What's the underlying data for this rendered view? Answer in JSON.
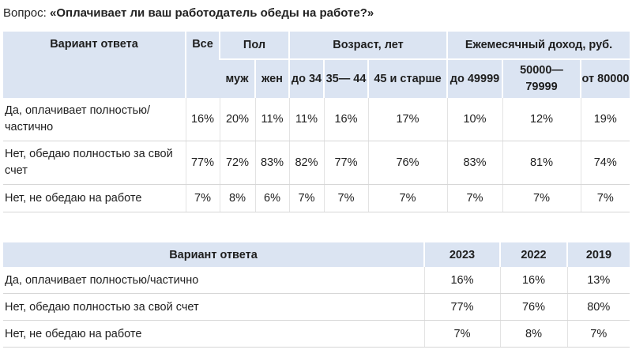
{
  "question": {
    "prefix": "Вопрос:",
    "text": "«Оплачивает ли ваш работодатель обеды на работе?»"
  },
  "table1": {
    "header": {
      "option": "Вариант ответа",
      "all": "Все",
      "gender": "Пол",
      "age": "Возраст, лет",
      "income": "Ежемесячный доход, руб.",
      "sub": [
        "муж",
        "жен",
        "до 34",
        "35— 44",
        "45 и старше",
        "до 49999",
        "50000— 79999",
        "от 80000"
      ]
    },
    "rows": [
      {
        "label": "Да, оплачивает полностью/ частично",
        "values": [
          "16%",
          "20%",
          "11%",
          "11%",
          "16%",
          "17%",
          "10%",
          "12%",
          "19%"
        ]
      },
      {
        "label": "Нет, обедаю полностью за свой счет",
        "values": [
          "77%",
          "72%",
          "83%",
          "82%",
          "77%",
          "76%",
          "83%",
          "81%",
          "74%"
        ]
      },
      {
        "label": "Нет, не обедаю на работе",
        "values": [
          "7%",
          "8%",
          "6%",
          "7%",
          "7%",
          "7%",
          "7%",
          "7%",
          "7%"
        ]
      }
    ]
  },
  "table2": {
    "header": {
      "option": "Вариант ответа",
      "years": [
        "2023",
        "2022",
        "2019"
      ]
    },
    "rows": [
      {
        "label": "Да, оплачивает полностью/частично",
        "values": [
          "16%",
          "16%",
          "13%"
        ]
      },
      {
        "label": "Нет, обедаю полностью за свой счет",
        "values": [
          "77%",
          "76%",
          "80%"
        ]
      },
      {
        "label": "Нет, не обедаю на работе",
        "values": [
          "7%",
          "8%",
          "7%"
        ]
      }
    ]
  }
}
